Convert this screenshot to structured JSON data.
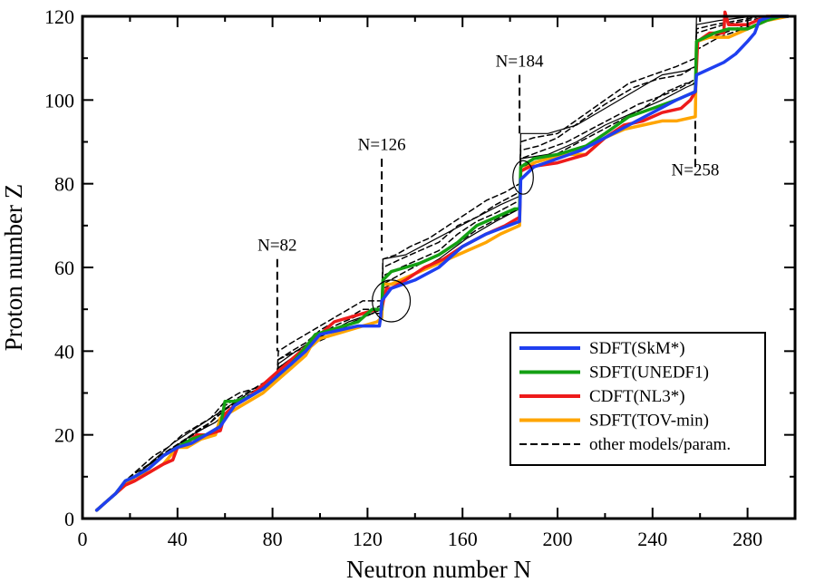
{
  "chart_data": {
    "type": "line",
    "xlabel": "Neutron number N",
    "ylabel": "Proton number Z",
    "xlim": [
      0,
      300
    ],
    "ylim": [
      0,
      120
    ],
    "x_ticks": [
      0,
      40,
      80,
      120,
      160,
      200,
      240,
      280
    ],
    "y_ticks": [
      0,
      20,
      40,
      60,
      80,
      100,
      120
    ],
    "grid": false,
    "legend_position": "lower-right",
    "annotations": [
      {
        "text": "N=82",
        "x": 82,
        "label_y": 64,
        "line_from": 62,
        "line_to": 40
      },
      {
        "text": "N=126",
        "x": 126,
        "label_y": 88,
        "line_from": 86,
        "line_to": 64
      },
      {
        "text": "N=184",
        "x": 184,
        "label_y": 108,
        "line_from": 106,
        "line_to": 92
      },
      {
        "text": "N=258",
        "x": 258,
        "label_y": 82,
        "line_from": 84,
        "line_to": 95
      }
    ],
    "ellipses": [
      {
        "cx": 130,
        "cy": 52,
        "rx": 8,
        "ry": 5
      },
      {
        "cx": 185.5,
        "cy": 81.5,
        "rx": 4.3,
        "ry": 4
      }
    ],
    "series": [
      {
        "name": "SDFT(SkM*)",
        "color": "#1f3ff0",
        "style": "solid",
        "x": [
          6,
          10,
          14,
          18,
          22,
          28,
          34,
          40,
          46,
          52,
          58,
          64,
          70,
          76,
          82,
          88,
          94,
          100,
          108,
          116,
          122,
          125,
          125.5,
          126,
          130,
          140,
          150,
          160,
          170,
          184,
          184.5,
          190,
          200,
          210,
          220,
          230,
          240,
          250,
          258,
          258.5,
          270,
          275,
          280,
          283,
          285,
          290,
          297
        ],
        "y": [
          2,
          4,
          6,
          9,
          10,
          12,
          15,
          17,
          18,
          20,
          22,
          27,
          29,
          31,
          34,
          37,
          40,
          44,
          45,
          46,
          46,
          46,
          48,
          52,
          55,
          57,
          60,
          65,
          68,
          71,
          81,
          84,
          86,
          88,
          91,
          94,
          97,
          100,
          102,
          106,
          109,
          111,
          114,
          116,
          119,
          120,
          120
        ]
      },
      {
        "name": "SDFT(UNEDF1)",
        "color": "#13a013",
        "style": "solid",
        "x": [
          6,
          10,
          14,
          18,
          22,
          28,
          34,
          40,
          46,
          52,
          58,
          60,
          64,
          70,
          76,
          82,
          88,
          94,
          98,
          104,
          110,
          116,
          122,
          126,
          126.5,
          130,
          136,
          142,
          150,
          158,
          166,
          174,
          182,
          184,
          184.5,
          190,
          200,
          212,
          220,
          230,
          240,
          250,
          258,
          258.5,
          266,
          272,
          280,
          288,
          294,
          297
        ],
        "y": [
          2,
          4,
          6,
          9,
          10,
          12,
          15,
          17,
          19,
          20,
          22,
          28,
          28,
          29,
          31,
          34,
          37,
          41,
          44,
          45,
          46,
          47,
          50,
          50,
          57,
          59,
          60,
          61,
          63,
          66,
          70,
          72,
          74,
          74,
          84,
          86,
          87,
          89,
          92,
          96,
          98,
          100,
          102,
          114,
          116,
          117,
          117,
          119,
          120,
          120
        ]
      },
      {
        "name": "CDFT(NL3*)",
        "color": "#ee1b1b",
        "style": "solid",
        "x": [
          6,
          10,
          14,
          18,
          22,
          28,
          34,
          38,
          40,
          44,
          48,
          52,
          58,
          60,
          64,
          70,
          76,
          82,
          88,
          94,
          100,
          106,
          112,
          118,
          124,
          126,
          127,
          128,
          130,
          136,
          144,
          152,
          160,
          170,
          178,
          184,
          184.5,
          188,
          200,
          212,
          220,
          228,
          236,
          244,
          252,
          256,
          258,
          259,
          264,
          270,
          270.5,
          272,
          280,
          288,
          297
        ],
        "y": [
          2,
          4,
          6,
          8,
          9,
          11,
          13,
          14,
          17,
          18,
          20,
          20,
          21,
          25,
          27,
          29,
          32,
          35,
          38,
          41,
          44,
          47,
          48,
          49,
          50,
          50,
          53,
          55,
          55,
          57,
          60,
          62,
          65,
          68,
          70,
          72,
          83,
          84,
          85,
          87,
          91,
          94,
          95,
          97,
          98,
          100,
          102,
          114,
          116,
          116,
          121,
          118,
          118,
          120,
          120
        ]
      },
      {
        "name": "SDFT(TOV-min)",
        "color": "#ffa500",
        "style": "solid",
        "x": [
          6,
          10,
          14,
          18,
          22,
          28,
          34,
          40,
          44,
          50,
          56,
          58,
          64,
          70,
          76,
          82,
          88,
          94,
          96,
          100,
          106,
          112,
          118,
          124,
          126,
          126.5,
          130,
          138,
          146,
          154,
          162,
          170,
          176,
          184,
          184.5,
          190,
          196,
          204,
          212,
          220,
          228,
          236,
          244,
          250,
          258,
          258.5,
          264,
          272,
          280,
          288,
          297
        ],
        "y": [
          2,
          4,
          6,
          8,
          10,
          11,
          13,
          17,
          17,
          19,
          20,
          24,
          26,
          28,
          30,
          33,
          36,
          39,
          41,
          43,
          44,
          45,
          46,
          47,
          48,
          56,
          56,
          58,
          60,
          62,
          64,
          66,
          68,
          70,
          83,
          85,
          86,
          87,
          87,
          91,
          93,
          94,
          95,
          95,
          96,
          114,
          115,
          115,
          117,
          119,
          120
        ]
      },
      {
        "name": "other models/param.",
        "color": "#000000",
        "style": "dashed",
        "width": 1.5,
        "x": [
          6,
          12,
          18,
          24,
          30,
          36,
          42,
          48,
          54,
          60,
          66,
          72,
          78,
          82,
          82.5,
          88,
          94,
          100,
          106,
          112,
          118,
          126,
          126.5,
          132,
          138,
          146,
          154,
          162,
          170,
          178,
          184,
          184.5,
          190,
          200,
          210,
          220,
          230,
          240,
          250,
          258,
          258.5,
          270,
          280,
          290,
          297
        ],
        "y": [
          2,
          5,
          8,
          11,
          14,
          16,
          18,
          21,
          23,
          27,
          29,
          31,
          33,
          35,
          40,
          42,
          44,
          46,
          48,
          50,
          52,
          52,
          62,
          63,
          65,
          67,
          70,
          73,
          76,
          78,
          80,
          90,
          91,
          92,
          96,
          100,
          104,
          106,
          108,
          110,
          116,
          118,
          119,
          120,
          120
        ]
      },
      {
        "name": "",
        "color": "#000000",
        "style": "dashed",
        "width": 1.5,
        "x": [
          6,
          12,
          18,
          24,
          30,
          36,
          42,
          48,
          54,
          60,
          66,
          72,
          78,
          82,
          82.5,
          88,
          94,
          100,
          106,
          112,
          118,
          126,
          126.5,
          134,
          142,
          150,
          158,
          166,
          174,
          184,
          184.5,
          194,
          204,
          214,
          224,
          234,
          244,
          252,
          258,
          258.5,
          268,
          278,
          288,
          297
        ],
        "y": [
          2,
          5,
          9,
          12,
          15,
          17,
          20,
          22,
          24,
          28,
          30,
          31,
          32,
          34,
          38,
          40,
          42,
          45,
          47,
          48,
          50,
          50,
          58,
          60,
          62,
          64,
          68,
          71,
          73,
          76,
          86,
          88,
          90,
          93,
          96,
          99,
          101,
          103,
          105,
          112,
          115,
          117,
          119,
          120
        ]
      },
      {
        "name": "",
        "color": "#000000",
        "style": "dashed",
        "width": 1.5,
        "x": [
          6,
          14,
          20,
          28,
          36,
          44,
          52,
          60,
          68,
          76,
          82,
          82.5,
          90,
          98,
          106,
          114,
          122,
          126,
          126.5,
          134,
          142,
          150,
          158,
          166,
          174,
          184,
          184.5,
          192,
          200,
          210,
          220,
          232,
          242,
          252,
          258,
          258.5,
          266,
          276,
          286,
          297
        ],
        "y": [
          2,
          6,
          10,
          13,
          16,
          19,
          22,
          26,
          29,
          31,
          33,
          36,
          39,
          43,
          46,
          48,
          50,
          51,
          60,
          62,
          64,
          66,
          70,
          72,
          75,
          78,
          88,
          89,
          91,
          95,
          99,
          103,
          105,
          106,
          108,
          117,
          118,
          119,
          120,
          120
        ]
      },
      {
        "name": "",
        "color": "#000000",
        "style": "dashed",
        "width": 1.5,
        "x": [
          6,
          14,
          22,
          30,
          38,
          46,
          54,
          62,
          70,
          78,
          82,
          82.5,
          90,
          98,
          106,
          114,
          122,
          126,
          126.5,
          136,
          146,
          156,
          166,
          176,
          184,
          184.5,
          196,
          206,
          216,
          226,
          236,
          246,
          254,
          258,
          258.5,
          270,
          284,
          297
        ],
        "y": [
          2,
          6,
          10,
          14,
          17,
          20,
          23,
          27,
          29,
          32,
          33,
          38,
          40,
          42,
          44,
          47,
          49,
          49,
          56,
          59,
          62,
          65,
          69,
          72,
          74,
          84,
          86,
          89,
          92,
          95,
          98,
          102,
          104,
          104,
          114,
          116,
          119,
          120
        ]
      },
      {
        "name": "",
        "color": "#000000",
        "style": "solid",
        "width": 1.2,
        "x": [
          6,
          14,
          22,
          30,
          38,
          46,
          54,
          62,
          70,
          78,
          82,
          82.5,
          90,
          98,
          106,
          114,
          122,
          126,
          126.5,
          136,
          146,
          156,
          166,
          176,
          184,
          184.5,
          196,
          208,
          220,
          232,
          244,
          254,
          258,
          258.5,
          270,
          284,
          297
        ],
        "y": [
          2,
          6,
          10,
          14,
          18,
          21,
          24,
          27,
          30,
          32,
          34,
          37,
          40,
          43,
          45,
          47,
          49,
          50,
          62,
          63,
          66,
          69,
          72,
          75,
          77,
          92,
          92,
          94,
          98,
          102,
          106,
          107,
          108,
          120,
          120,
          120,
          120
        ]
      },
      {
        "name": "",
        "color": "#000000",
        "style": "solid",
        "width": 1.2,
        "x": [
          6,
          16,
          26,
          36,
          46,
          56,
          66,
          76,
          82,
          82.5,
          92,
          102,
          112,
          122,
          126,
          126.5,
          138,
          150,
          162,
          174,
          184,
          184.5,
          196,
          208,
          220,
          232,
          244,
          254,
          258,
          258.5,
          268,
          282,
          297
        ],
        "y": [
          2,
          7,
          12,
          16,
          20,
          23,
          28,
          31,
          34,
          36,
          40,
          44,
          47,
          49,
          50,
          55,
          58,
          62,
          67,
          71,
          74,
          86,
          87,
          90,
          94,
          97,
          100,
          103,
          104,
          118,
          119,
          120,
          120
        ]
      }
    ]
  },
  "legend": {
    "items": [
      {
        "label": "SDFT(SkM*)",
        "color": "#1f3ff0",
        "style": "solid"
      },
      {
        "label": "SDFT(UNEDF1)",
        "color": "#13a013",
        "style": "solid"
      },
      {
        "label": "CDFT(NL3*)",
        "color": "#ee1b1b",
        "style": "solid"
      },
      {
        "label": "SDFT(TOV-min)",
        "color": "#ffa500",
        "style": "solid"
      },
      {
        "label": "other models/param.",
        "color": "#000000",
        "style": "dashed"
      }
    ]
  }
}
